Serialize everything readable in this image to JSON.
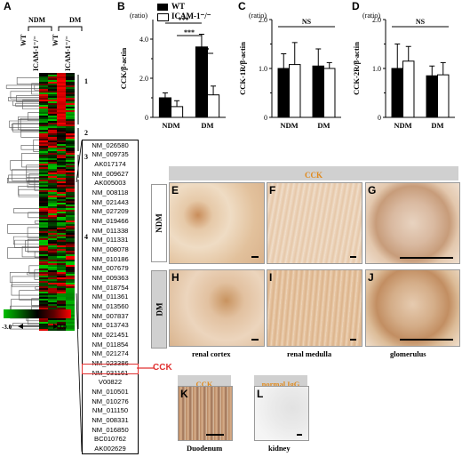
{
  "panel_labels": {
    "A": "A",
    "B": "B",
    "C": "C",
    "D": "D",
    "E": "E",
    "F": "F",
    "G": "G",
    "H": "H",
    "I": "I",
    "J": "J",
    "K": "K",
    "L": "L"
  },
  "heatmap": {
    "group_ndm": "NDM",
    "group_dm": "DM",
    "col_labels": [
      "WT",
      "ICAM-1⁻/⁻",
      "WT",
      "ICAM-1⁻/⁻"
    ],
    "cluster_labels": [
      "1",
      "2",
      "3",
      "4"
    ],
    "scale_min": "-3.0",
    "scale_max": "3.0",
    "colors": {
      "high": "#ff0000",
      "low": "#00c000",
      "mid": "#000000"
    }
  },
  "gene_list": [
    "NM_026580",
    "NM_009735",
    "AK017174",
    "NM_009627",
    "AK005003",
    "NM_008118",
    "NM_021443",
    "NM_027209",
    "NM_019466",
    "NM_011338",
    "NM_011331",
    "NM_008078",
    "NM_010186",
    "NM_007679",
    "NM_009363",
    "NM_018754",
    "NM_011361",
    "NM_013560",
    "NM_007837",
    "NM_013743",
    "NM_021451",
    "NM_011854",
    "NM_021274",
    "NM_023386",
    "NM_031161",
    "V00822",
    "NM_010501",
    "NM_010276",
    "NM_011150",
    "NM_008331",
    "NM_016850",
    "BC010762",
    "AK002629"
  ],
  "highlight_gene_index": 24,
  "highlight_label": "CCK",
  "legend": {
    "wt": "WT",
    "ko": "ICAM-1⁻/⁻"
  },
  "chart_data": [
    {
      "type": "bar",
      "panel": "B",
      "ratio_label": "(ratio)",
      "ylabel": "CCK/β-actin",
      "categories": [
        "NDM",
        "DM"
      ],
      "ylim": [
        0,
        5
      ],
      "yticks": [
        "0",
        "2.0",
        "4.0"
      ],
      "series": [
        {
          "name": "WT",
          "values": [
            1.0,
            3.6
          ],
          "errors": [
            0.25,
            0.65
          ]
        },
        {
          "name": "ICAM-1⁻/⁻",
          "values": [
            0.55,
            1.15
          ],
          "errors": [
            0.3,
            0.45
          ]
        }
      ],
      "annotations": [
        "***",
        "***",
        "*"
      ]
    },
    {
      "type": "bar",
      "panel": "C",
      "ratio_label": "(ratio)",
      "ylabel": "CCK-1R/β-actin",
      "categories": [
        "NDM",
        "DM"
      ],
      "ylim": [
        0,
        2.0
      ],
      "yticks": [
        "0",
        "1.0",
        "2.0"
      ],
      "series": [
        {
          "name": "WT",
          "values": [
            1.0,
            1.05
          ],
          "errors": [
            0.3,
            0.35
          ]
        },
        {
          "name": "ICAM-1⁻/⁻",
          "values": [
            1.08,
            1.0
          ],
          "errors": [
            0.45,
            0.12
          ]
        }
      ],
      "annotations": [
        "NS"
      ]
    },
    {
      "type": "bar",
      "panel": "D",
      "ratio_label": "(ratio)",
      "ylabel": "CCK-2R/β-actin",
      "categories": [
        "NDM",
        "DM"
      ],
      "ylim": [
        0,
        2.0
      ],
      "yticks": [
        "0",
        "1.0",
        "2.0"
      ],
      "series": [
        {
          "name": "WT",
          "values": [
            1.0,
            0.85
          ],
          "errors": [
            0.5,
            0.2
          ]
        },
        {
          "name": "ICAM-1⁻/⁻",
          "values": [
            1.15,
            0.87
          ],
          "errors": [
            0.3,
            0.25
          ]
        }
      ],
      "annotations": [
        "NS"
      ]
    }
  ],
  "histology": {
    "header": "CCK",
    "row_ndm": "NDM",
    "row_dm": "DM",
    "captions": [
      "renal cortex",
      "renal medulla",
      "glomerulus"
    ],
    "k_header": "CCK",
    "l_header": "normal IgG",
    "k_caption": "Duodenum",
    "l_caption": "kidney"
  }
}
